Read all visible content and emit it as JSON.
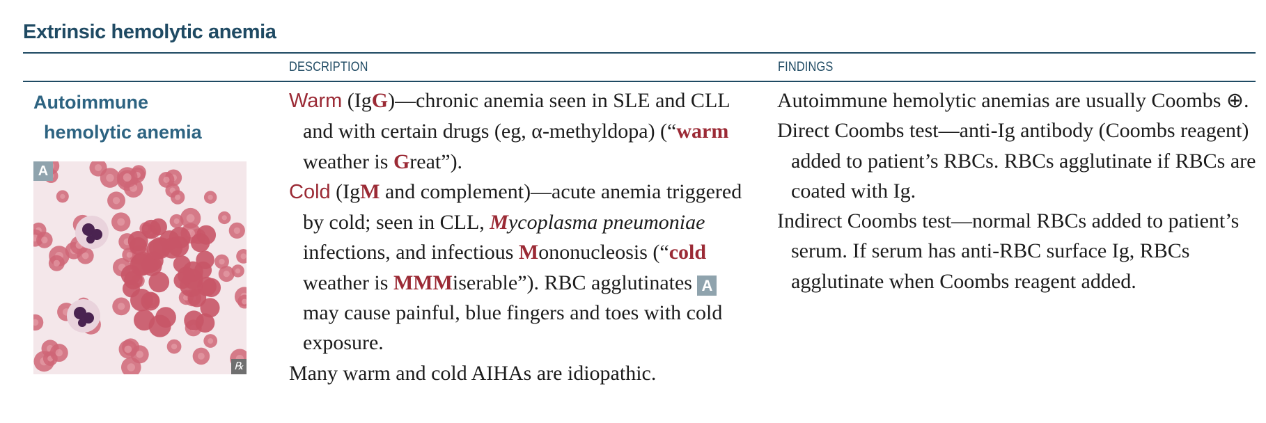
{
  "section_title": "Extrinsic hemolytic anemia",
  "columns": {
    "description": "DESCRIPTION",
    "findings": "FINDINGS"
  },
  "row": {
    "term_line1": "Autoimmune",
    "term_line2": "hemolytic anemia",
    "figure_label": "A",
    "figure_rx": "℞",
    "description": {
      "warm": {
        "term": "Warm",
        "p1": " (Ig",
        "p1_hi": "G",
        "p2": ")—chronic anemia seen in SLE and CLL and with certain drugs (eg, α-methyldopa) (“",
        "p2_hi": "warm",
        "p3": " weather is ",
        "p3_hi": "G",
        "p4": "reat”)."
      },
      "cold": {
        "term": "Cold",
        "p1": " (Ig",
        "p1_hi": "M",
        "p2": " and complement)—acute anemia triggered by cold; seen in CLL, ",
        "p2_hi": "M",
        "p2_it": "ycoplasma pneumoniae",
        "p3": " infections, and infectious ",
        "p3_hi": "M",
        "p4": "ononucleosis (“",
        "p4_hi": "cold",
        "p5": " weather is ",
        "p5_hi": "MMM",
        "p6": "iserable”). RBC agglutinates ",
        "badge": "A",
        "p7": " may cause painful, blue fingers and toes with cold exposure."
      },
      "note": "Many warm and cold AIHAs are idiopathic."
    },
    "findings": [
      "Autoimmune hemolytic anemias are usually Coombs ⊕.",
      "Direct Coombs test—anti-Ig antibody (Coombs reagent) added to patient’s RBCs. RBCs agglutinate if RBCs are coated with Ig.",
      "Indirect Coombs test—normal RBCs added to patient’s serum. If serum has anti-RBC surface Ig, RBCs agglutinate when Coombs reagent added."
    ]
  },
  "colors": {
    "heading": "#1f4a63",
    "term_label": "#2d6381",
    "highlight": "#9b2a35",
    "badge": "#8fa3ad",
    "rbc": "#cf6677",
    "slide_bg": "#f4e7ea"
  }
}
